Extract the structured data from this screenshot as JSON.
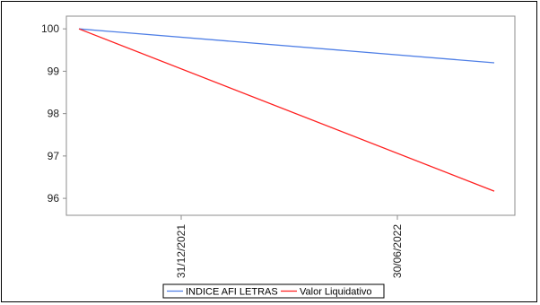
{
  "chart_data": {
    "type": "line",
    "x": [
      "31/12/2021",
      "30/06/2022"
    ],
    "x_ticks": [
      "31/12/2021",
      "30/06/2022"
    ],
    "y_ticks": [
      96,
      97,
      98,
      99,
      100
    ],
    "ylim": [
      95.6,
      100.3
    ],
    "grid": false,
    "legend_position": "bottom",
    "series": [
      {
        "name": "INDICE AFI LETRAS",
        "color": "#4f7fe6",
        "points": [
          [
            0,
            100.0
          ],
          [
            1,
            99.2
          ]
        ]
      },
      {
        "name": "Valor Liquidativo",
        "color": "#ff2020",
        "points": [
          [
            0,
            100.0
          ],
          [
            1,
            96.17
          ]
        ]
      }
    ]
  }
}
